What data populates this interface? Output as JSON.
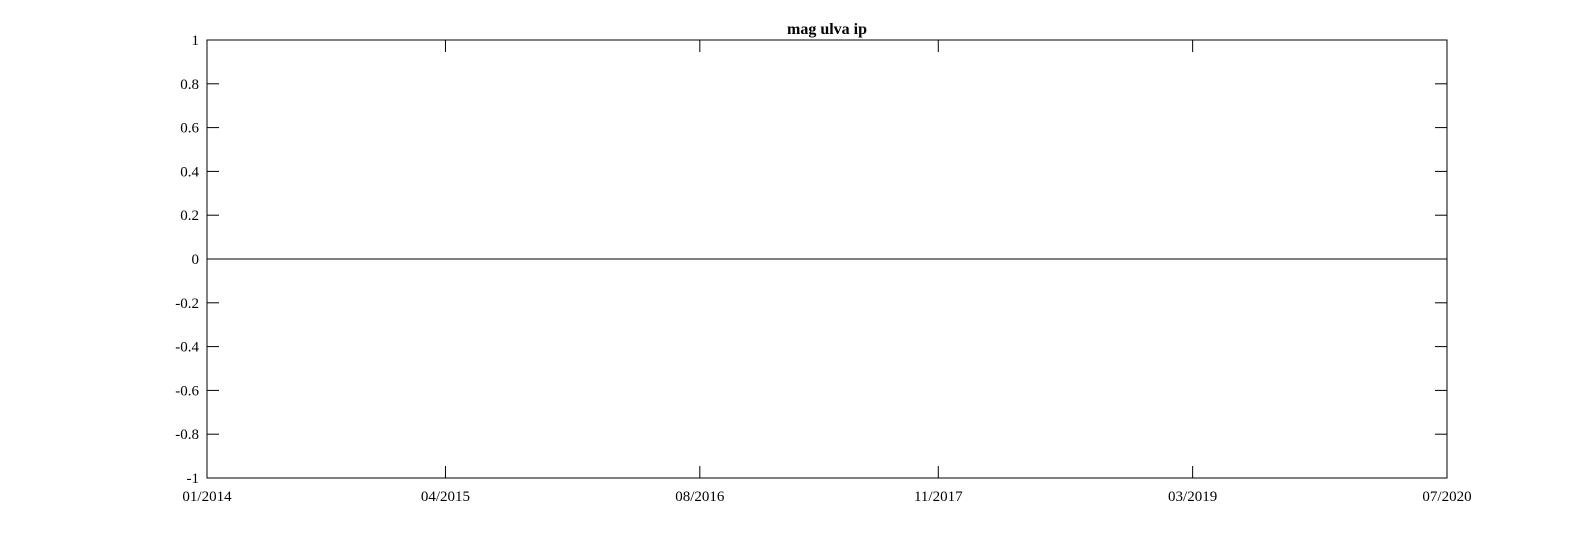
{
  "chart_data": {
    "type": "line",
    "title": "mag ulva ip",
    "xlabel": "",
    "ylabel": "",
    "x_tick_labels": [
      "01/2014",
      "04/2015",
      "08/2016",
      "11/2017",
      "03/2019",
      "07/2020"
    ],
    "y_tick_labels": [
      "1",
      "0.8",
      "0.6",
      "0.4",
      "0.2",
      "0",
      "-0.2",
      "-0.4",
      "-0.6",
      "-0.8",
      "-1"
    ],
    "y_ticks": [
      1,
      0.8,
      0.6,
      0.4,
      0.2,
      0,
      -0.2,
      -0.4,
      -0.6,
      -0.8,
      -1
    ],
    "xlim": [
      "01/2014",
      "07/2020"
    ],
    "ylim": [
      -1,
      1
    ],
    "grid": false,
    "series": [
      {
        "x": [
          "01/2014",
          "07/2020"
        ],
        "values": [
          0,
          0
        ],
        "color": "#000000"
      }
    ]
  }
}
